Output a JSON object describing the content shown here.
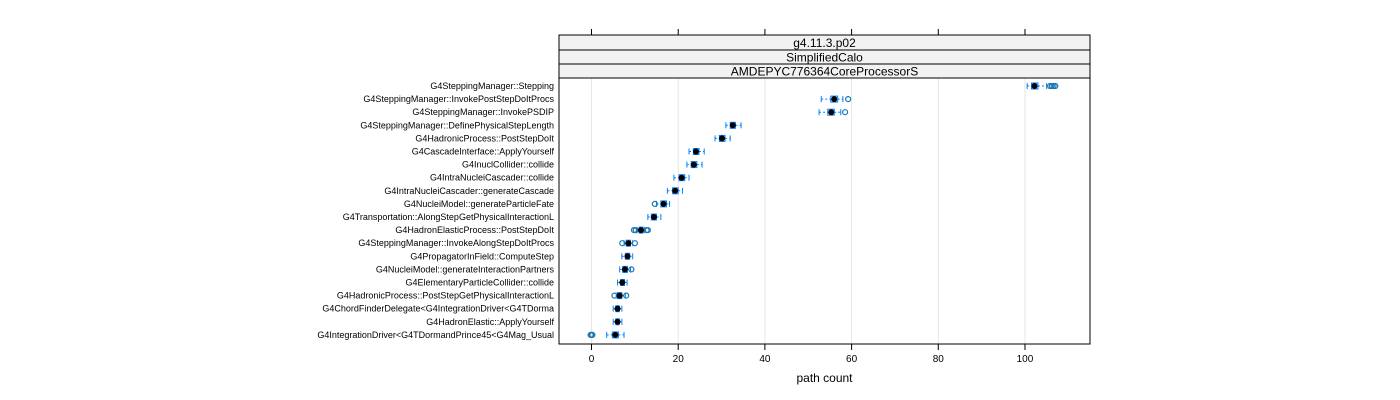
{
  "chart_data": {
    "type": "box",
    "strips": [
      "g4.11.3.p02",
      "SimplifiedCalo",
      "AMDEPYC776364CoreProcessorS"
    ],
    "xlabel": "path count",
    "xlim": [
      -7.5,
      115
    ],
    "xticks": [
      0,
      20,
      40,
      60,
      80,
      100
    ],
    "grid": true,
    "colors": {
      "box": "#0080ff",
      "outlier": "#1a7ab0",
      "median": "#000000",
      "strip_bg": "#f2f2f2",
      "grid": "#e6e6e6"
    },
    "series": [
      {
        "category": "G4SteppingManager::Stepping",
        "min": 100.5,
        "q1": 101.5,
        "median": 102.2,
        "q3": 103,
        "max": 105,
        "outliers": [
          105.8,
          106.2,
          106.6,
          107
        ]
      },
      {
        "category": "G4SteppingManager::InvokePostStepDoItProcs",
        "min": 53,
        "q1": 55.2,
        "median": 56,
        "q3": 56.8,
        "max": 58,
        "outliers": [
          59.2
        ]
      },
      {
        "category": "G4SteppingManager::InvokePSDIP",
        "min": 52.5,
        "q1": 54.5,
        "median": 55.3,
        "q3": 56,
        "max": 57.5,
        "outliers": [
          58.5
        ]
      },
      {
        "category": "G4SteppingManager::DefinePhysicalStepLength",
        "min": 31,
        "q1": 32,
        "median": 32.6,
        "q3": 33.2,
        "max": 34.5,
        "outliers": []
      },
      {
        "category": "G4HadronicProcess::PostStepDoIt",
        "min": 28.5,
        "q1": 29.5,
        "median": 30.1,
        "q3": 30.8,
        "max": 32,
        "outliers": []
      },
      {
        "category": "G4CascadeInterface::ApplyYourself",
        "min": 22.5,
        "q1": 23.5,
        "median": 24.1,
        "q3": 24.8,
        "max": 26,
        "outliers": []
      },
      {
        "category": "G4InuclCollider::collide",
        "min": 22,
        "q1": 23,
        "median": 23.6,
        "q3": 24.3,
        "max": 25.5,
        "outliers": []
      },
      {
        "category": "G4IntraNucleiCascader::collide",
        "min": 19,
        "q1": 20.2,
        "median": 20.8,
        "q3": 21.5,
        "max": 22.5,
        "outliers": []
      },
      {
        "category": "G4IntraNucleiCascader::generateCascade",
        "min": 17.5,
        "q1": 18.7,
        "median": 19.3,
        "q3": 20,
        "max": 21,
        "outliers": []
      },
      {
        "category": "G4NucleiModel::generateParticleFate",
        "min": 15,
        "q1": 16,
        "median": 16.6,
        "q3": 17.3,
        "max": 18,
        "outliers": [
          14.6
        ]
      },
      {
        "category": "G4Transportation::AlongStepGetPhysicalInteractionL",
        "min": 13,
        "q1": 13.8,
        "median": 14.4,
        "q3": 15,
        "max": 16,
        "outliers": []
      },
      {
        "category": "G4HadronElasticProcess::PostStepDoIt",
        "min": 10.5,
        "q1": 11,
        "median": 11.4,
        "q3": 11.9,
        "max": 12.2,
        "outliers": [
          9.8,
          10.2,
          12.7,
          13
        ]
      },
      {
        "category": "G4SteppingManager::InvokeAlongStepDoItProcs",
        "min": 7.5,
        "q1": 8,
        "median": 8.5,
        "q3": 9,
        "max": 9.5,
        "outliers": [
          7.1,
          10
        ]
      },
      {
        "category": "G4PropagatorInField::ComputeStep",
        "min": 7,
        "q1": 7.8,
        "median": 8.3,
        "q3": 8.8,
        "max": 9.5,
        "outliers": []
      },
      {
        "category": "G4NucleiModel::generateInteractionPartners",
        "min": 6.5,
        "q1": 7.2,
        "median": 7.7,
        "q3": 8.3,
        "max": 9,
        "outliers": [
          9.2
        ]
      },
      {
        "category": "G4ElementaryParticleCollider::collide",
        "min": 6,
        "q1": 6.7,
        "median": 7.1,
        "q3": 7.6,
        "max": 8.2,
        "outliers": []
      },
      {
        "category": "G4HadronicProcess::PostStepGetPhysicalInteractionL",
        "min": 5.7,
        "q1": 6,
        "median": 6.5,
        "q3": 7,
        "max": 7.8,
        "outliers": [
          5.3,
          8
        ]
      },
      {
        "category": "G4ChordFinderDelegate<G4IntegrationDriver<G4TDorma",
        "min": 5,
        "q1": 5.6,
        "median": 6,
        "q3": 6.4,
        "max": 7,
        "outliers": []
      },
      {
        "category": "G4HadronElastic::ApplyYourself",
        "min": 5,
        "q1": 5.6,
        "median": 6,
        "q3": 6.4,
        "max": 7,
        "outliers": []
      },
      {
        "category": "G4IntegrationDriver<G4TDormandPrince45<G4Mag_Usual",
        "min": 3.5,
        "q1": 4.8,
        "median": 5.5,
        "q3": 6.2,
        "max": 7.5,
        "outliers": [
          -0.2,
          0,
          0.2
        ]
      }
    ]
  }
}
